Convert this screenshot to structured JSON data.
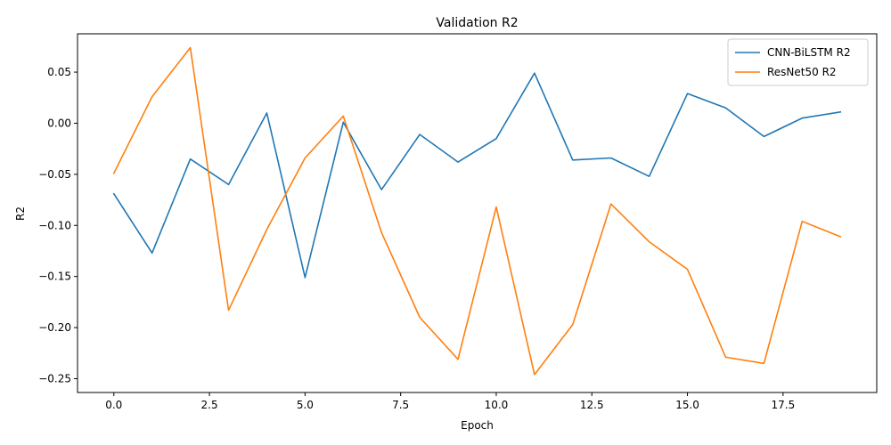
{
  "chart_data": {
    "type": "line",
    "title": "Validation R2",
    "xlabel": "Epoch",
    "ylabel": "R2",
    "x": [
      0,
      1,
      2,
      3,
      4,
      5,
      6,
      7,
      8,
      9,
      10,
      11,
      12,
      13,
      14,
      15,
      16,
      17,
      18,
      19
    ],
    "xlim": [
      -0.95,
      19.95
    ],
    "ylim": [
      -0.2635,
      0.0875
    ],
    "xticks": [
      0.0,
      2.5,
      5.0,
      7.5,
      10.0,
      12.5,
      15.0,
      17.5
    ],
    "xtick_labels": [
      "0.0",
      "2.5",
      "5.0",
      "7.5",
      "10.0",
      "12.5",
      "15.0",
      "17.5"
    ],
    "yticks": [
      0.05,
      0.0,
      -0.05,
      -0.1,
      -0.15,
      -0.2,
      -0.25
    ],
    "ytick_labels": [
      "0.05",
      "0.00",
      "−0.05",
      "−0.10",
      "−0.15",
      "−0.20",
      "−0.25"
    ],
    "grid": false,
    "legend_position": "top-right",
    "series": [
      {
        "name": "CNN-BiLSTM R2",
        "color": "#1f77b4",
        "values": [
          -0.069,
          -0.127,
          -0.035,
          -0.06,
          0.01,
          -0.151,
          0.001,
          -0.065,
          -0.011,
          -0.038,
          -0.015,
          0.049,
          -0.036,
          -0.034,
          -0.052,
          0.029,
          0.015,
          -0.013,
          0.005,
          0.011
        ]
      },
      {
        "name": "ResNet50 R2",
        "color": "#ff7f0e",
        "values": [
          -0.049,
          0.026,
          0.074,
          -0.183,
          -0.104,
          -0.034,
          0.007,
          -0.107,
          -0.19,
          -0.231,
          -0.082,
          -0.246,
          -0.197,
          -0.079,
          -0.116,
          -0.143,
          -0.229,
          -0.235,
          -0.096,
          -0.111
        ]
      }
    ]
  }
}
